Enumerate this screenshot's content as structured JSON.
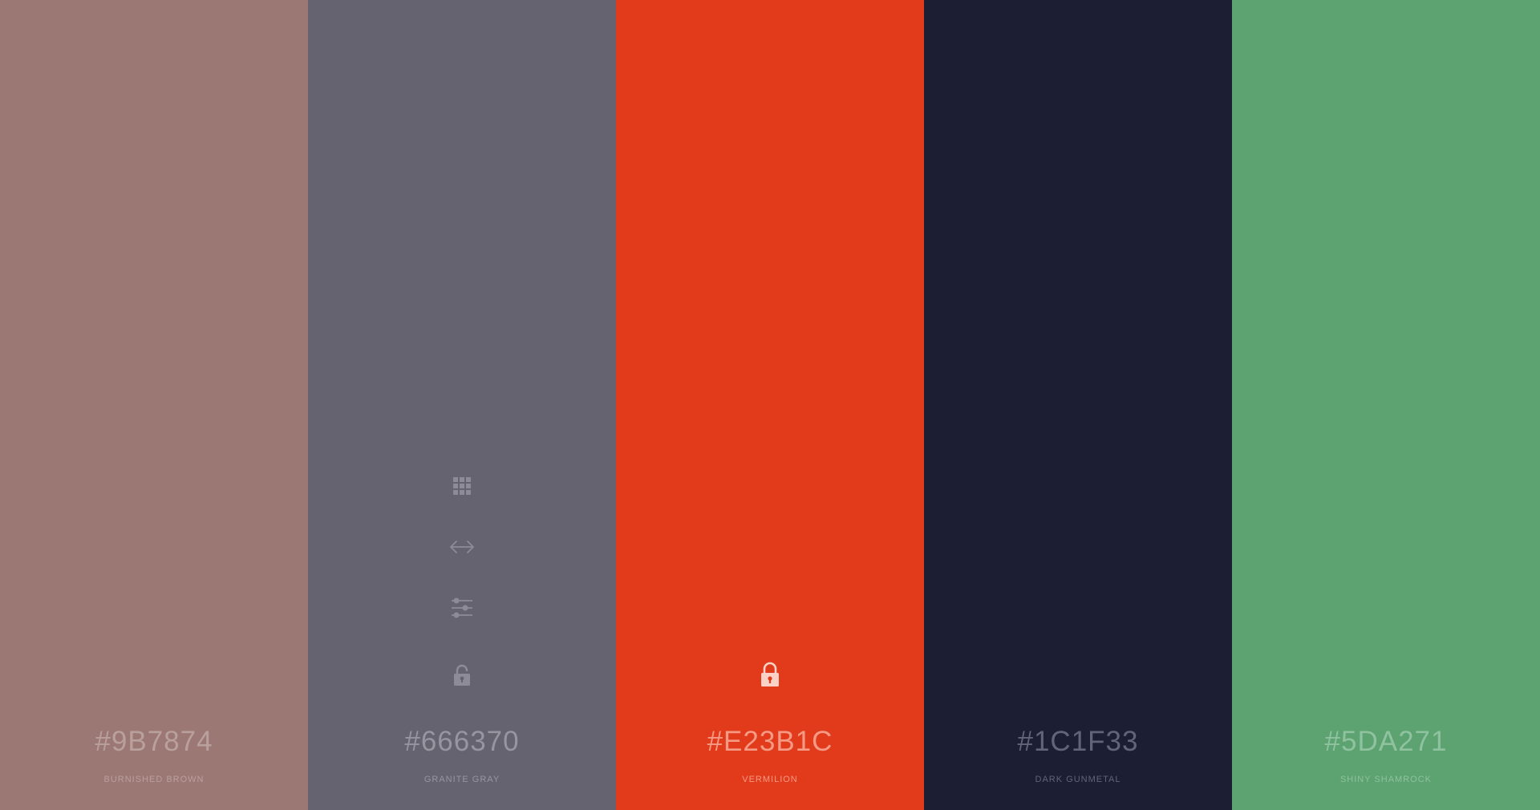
{
  "palette": {
    "swatches": [
      {
        "hex": "#9B7874",
        "name": "BURNISHED BROWN",
        "bg": "#9B7874",
        "text_color": "#B9A09C"
      },
      {
        "hex": "#666370",
        "name": "GRANITE GRAY",
        "bg": "#666370",
        "text_color": "#9795A0"
      },
      {
        "hex": "#E23B1C",
        "name": "VERMILION",
        "bg": "#E23B1C",
        "text_color": "#F59A85"
      },
      {
        "hex": "#1C1F33",
        "name": "DARK GUNMETAL",
        "bg": "#1C1F33",
        "text_color": "#61647A"
      },
      {
        "hex": "#5DA271",
        "name": "SHINY SHAMROCK",
        "bg": "#5DA271",
        "text_color": "#8FC29E"
      }
    ],
    "tool_icons": [
      "grid-icon",
      "arrows-horizontal-icon",
      "sliders-icon",
      "lock-icon"
    ],
    "locked_swatch": "VERMILION"
  }
}
